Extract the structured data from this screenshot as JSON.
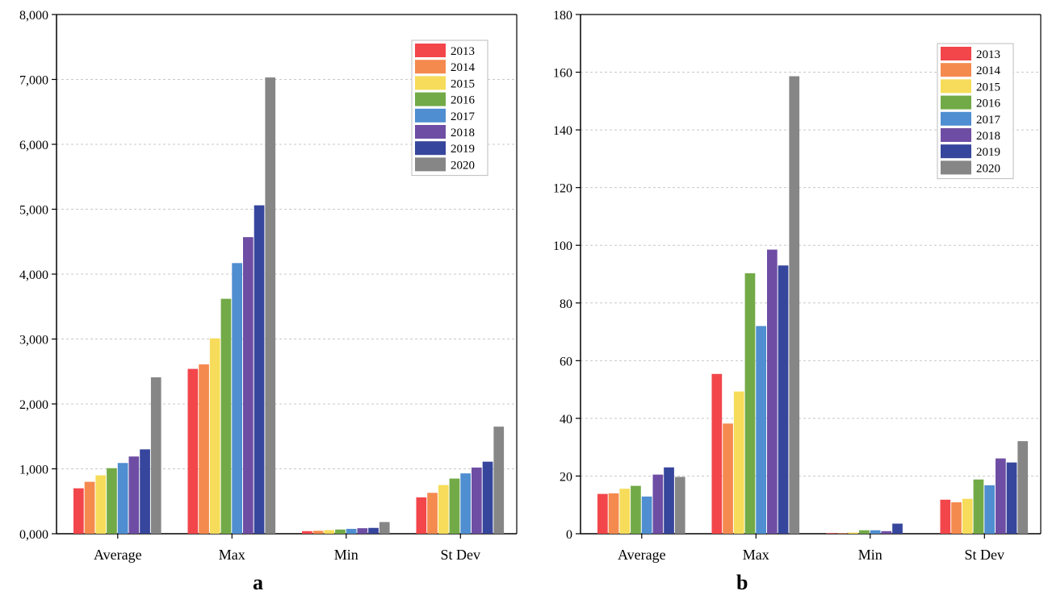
{
  "years": [
    "2013",
    "2014",
    "2015",
    "2016",
    "2017",
    "2018",
    "2019",
    "2020"
  ],
  "colors": [
    "#f2464b",
    "#f58a4f",
    "#f6dc5a",
    "#72aa47",
    "#4f8ed0",
    "#6e4ea4",
    "#36469c",
    "#868686"
  ],
  "chart_data": [
    {
      "type": "bar",
      "panel": "a",
      "categories": [
        "Average",
        "Max",
        "Min",
        "St Dev"
      ],
      "ylim": [
        0,
        8000
      ],
      "yticks": [
        0,
        1000,
        2000,
        3000,
        4000,
        5000,
        6000,
        7000,
        8000
      ],
      "ytick_labels": [
        "0,000",
        "1,000",
        "2,000",
        "3,000",
        "4,000",
        "5,000",
        "6,000",
        "7,000",
        "8,000"
      ],
      "grid": "horizontal dashed",
      "legend": "top-right",
      "series": [
        {
          "name": "2013",
          "values": [
            700,
            2540,
            40,
            560
          ]
        },
        {
          "name": "2014",
          "values": [
            800,
            2610,
            45,
            630
          ]
        },
        {
          "name": "2015",
          "values": [
            900,
            3010,
            55,
            750
          ]
        },
        {
          "name": "2016",
          "values": [
            1010,
            3620,
            65,
            850
          ]
        },
        {
          "name": "2017",
          "values": [
            1090,
            4170,
            75,
            930
          ]
        },
        {
          "name": "2018",
          "values": [
            1190,
            4570,
            85,
            1020
          ]
        },
        {
          "name": "2019",
          "values": [
            1300,
            5060,
            90,
            1110
          ]
        },
        {
          "name": "2020",
          "values": [
            2410,
            7030,
            180,
            1650
          ]
        }
      ]
    },
    {
      "type": "bar",
      "panel": "b",
      "categories": [
        "Average",
        "Max",
        "Min",
        "St Dev"
      ],
      "ylim": [
        0,
        180
      ],
      "yticks": [
        0,
        20,
        40,
        60,
        80,
        100,
        120,
        140,
        160,
        180
      ],
      "ytick_labels": [
        "0",
        "20",
        "40",
        "60",
        "80",
        "100",
        "120",
        "140",
        "160",
        "180"
      ],
      "grid": "horizontal dashed",
      "legend": "top-right",
      "series": [
        {
          "name": "2013",
          "values": [
            13.8,
            55.4,
            0.2,
            11.8
          ]
        },
        {
          "name": "2014",
          "values": [
            14.0,
            38.2,
            0.2,
            10.9
          ]
        },
        {
          "name": "2015",
          "values": [
            15.6,
            49.3,
            0.4,
            12.1
          ]
        },
        {
          "name": "2016",
          "values": [
            16.6,
            90.3,
            1.2,
            18.8
          ]
        },
        {
          "name": "2017",
          "values": [
            12.9,
            72.0,
            1.2,
            16.8
          ]
        },
        {
          "name": "2018",
          "values": [
            20.5,
            98.5,
            0.9,
            26.1
          ]
        },
        {
          "name": "2019",
          "values": [
            23.0,
            93.0,
            3.5,
            24.7
          ]
        },
        {
          "name": "2020",
          "values": [
            19.7,
            158.6,
            0.0,
            32.1
          ]
        }
      ]
    }
  ],
  "panel_labels": {
    "a": "a",
    "b": "b"
  }
}
